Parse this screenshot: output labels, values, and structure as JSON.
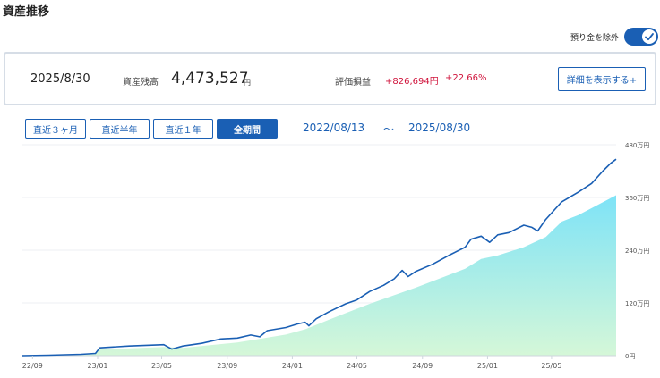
{
  "header": {
    "title": "資産推移"
  },
  "toggle": {
    "label": "預り金を除外",
    "on": true
  },
  "summary": {
    "date": "2025/8/30",
    "balance_label": "資産残高",
    "balance_value": "4,473,527",
    "balance_unit": "円",
    "pl_label": "評価損益",
    "pl_value": "+826,694円",
    "pl_percent": "+22.66%",
    "detail_button": "詳細を表示する+"
  },
  "periods": [
    {
      "label": "直近３ヶ月",
      "active": false
    },
    {
      "label": "直近半年",
      "active": false
    },
    {
      "label": "直近１年",
      "active": false
    },
    {
      "label": "全期間",
      "active": true
    }
  ],
  "range": {
    "start": "2022/08/13",
    "separator": "～",
    "end": "2025/08/30"
  },
  "colors": {
    "accent": "#1a5fb4",
    "loss_gain": "#d0143c",
    "area_top": "#7ee3f7",
    "area_bottom": "#d5f7d8",
    "line": "#1a5fb4"
  },
  "chart_data": {
    "type": "area",
    "x_ticks": [
      "22/09",
      "23/01",
      "23/05",
      "23/09",
      "24/01",
      "24/05",
      "24/09",
      "25/01",
      "25/05"
    ],
    "y_ticks": [
      "480万円",
      "360万円",
      "240万円",
      "120万円",
      "0円"
    ],
    "ylim": [
      0,
      480
    ],
    "xlim": [
      "2022-08-13",
      "2025-08-30"
    ],
    "series": [
      {
        "kind": "line",
        "points": [
          [
            "2022-08-13",
            0
          ],
          [
            "2022-10-01",
            1
          ],
          [
            "2022-12-01",
            3
          ],
          [
            "2022-12-28",
            5
          ],
          [
            "2023-01-05",
            18
          ],
          [
            "2023-03-01",
            22
          ],
          [
            "2023-05-05",
            25
          ],
          [
            "2023-05-20",
            15
          ],
          [
            "2023-06-10",
            22
          ],
          [
            "2023-07-15",
            28
          ],
          [
            "2023-08-20",
            38
          ],
          [
            "2023-09-20",
            40
          ],
          [
            "2023-10-15",
            47
          ],
          [
            "2023-11-01",
            43
          ],
          [
            "2023-11-15",
            57
          ],
          [
            "2023-12-20",
            64
          ],
          [
            "2024-01-10",
            72
          ],
          [
            "2024-01-25",
            76
          ],
          [
            "2024-02-01",
            68
          ],
          [
            "2024-02-15",
            84
          ],
          [
            "2024-03-10",
            100
          ],
          [
            "2024-04-10",
            118
          ],
          [
            "2024-05-01",
            127
          ],
          [
            "2024-05-25",
            146
          ],
          [
            "2024-06-20",
            160
          ],
          [
            "2024-07-10",
            175
          ],
          [
            "2024-07-25",
            194
          ],
          [
            "2024-08-05",
            180
          ],
          [
            "2024-08-20",
            192
          ],
          [
            "2024-09-20",
            208
          ],
          [
            "2024-10-20",
            228
          ],
          [
            "2024-11-20",
            247
          ],
          [
            "2024-12-01",
            265
          ],
          [
            "2024-12-20",
            272
          ],
          [
            "2025-01-05",
            258
          ],
          [
            "2025-01-20",
            275
          ],
          [
            "2025-02-10",
            280
          ],
          [
            "2025-03-10",
            297
          ],
          [
            "2025-03-25",
            292
          ],
          [
            "2025-04-05",
            284
          ],
          [
            "2025-04-20",
            310
          ],
          [
            "2025-05-20",
            350
          ],
          [
            "2025-06-20",
            372
          ],
          [
            "2025-07-15",
            392
          ],
          [
            "2025-08-05",
            420
          ],
          [
            "2025-08-20",
            438
          ],
          [
            "2025-08-30",
            447
          ]
        ]
      },
      {
        "kind": "area",
        "points": [
          [
            "2022-08-13",
            0
          ],
          [
            "2022-12-28",
            4
          ],
          [
            "2023-01-05",
            14
          ],
          [
            "2023-05-05",
            20
          ],
          [
            "2023-06-10",
            18
          ],
          [
            "2023-09-20",
            30
          ],
          [
            "2023-12-20",
            48
          ],
          [
            "2024-01-25",
            60
          ],
          [
            "2024-03-10",
            82
          ],
          [
            "2024-05-25",
            118
          ],
          [
            "2024-08-20",
            155
          ],
          [
            "2024-11-20",
            198
          ],
          [
            "2024-12-20",
            220
          ],
          [
            "2025-01-20",
            228
          ],
          [
            "2025-03-10",
            247
          ],
          [
            "2025-04-20",
            270
          ],
          [
            "2025-05-20",
            305
          ],
          [
            "2025-06-20",
            320
          ],
          [
            "2025-08-30",
            365
          ]
        ]
      }
    ]
  }
}
